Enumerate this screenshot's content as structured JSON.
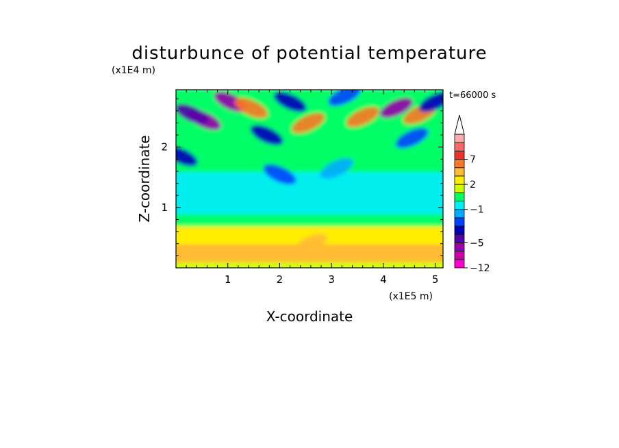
{
  "chart_data": {
    "type": "heatmap",
    "title": "disturbunce of potential temperature",
    "time_label": "t=66000 s",
    "xlabel": "X-coordinate",
    "ylabel": "Z-coordinate",
    "x_unit": "(x1E5 m)",
    "y_unit": "(x1E4 m)",
    "xlim": [
      0,
      5.15
    ],
    "ylim": [
      0,
      2.95
    ],
    "x_ticks": [
      1,
      2,
      3,
      4,
      5
    ],
    "y_ticks": [
      1,
      2
    ],
    "x_tick_labels": [
      "1",
      "2",
      "3",
      "4",
      "5"
    ],
    "y_tick_labels": [
      "1",
      "2"
    ],
    "grid": false,
    "colorbar": {
      "placement": "right",
      "levels": [
        -12,
        -9,
        -7,
        -5,
        -4,
        -3,
        -2,
        -1,
        0,
        1,
        2,
        3,
        5,
        7,
        9,
        11,
        14
      ],
      "colors": [
        "#ff00cc",
        "#cc00aa",
        "#9900aa",
        "#5500aa",
        "#0000bb",
        "#0044ff",
        "#00aaff",
        "#00eeee",
        "#00ff66",
        "#ccff00",
        "#ffee00",
        "#ffbb33",
        "#ff7722",
        "#ee3322",
        "#ff6666",
        "#ffaaaa"
      ],
      "tick_values": [
        -12,
        -5,
        -1,
        2,
        7
      ],
      "tick_labels": [
        "−12",
        "−5",
        "−1",
        "2",
        "7"
      ],
      "extend": "max"
    },
    "rows": [
      {
        "z_range": [
          0,
          0.1
        ],
        "value": 1.5
      },
      {
        "z_range": [
          0.1,
          0.4
        ],
        "value": 3.0
      },
      {
        "z_range": [
          0.4,
          0.7
        ],
        "value": 2.5
      },
      {
        "z_range": [
          0.7,
          0.9
        ],
        "value": 0.8
      },
      {
        "z_range": [
          0.9,
          1.3
        ],
        "value": -0.3
      },
      {
        "z_range": [
          1.3,
          1.6
        ],
        "value": -0.8
      },
      {
        "z_range": [
          1.6,
          1.95
        ],
        "value": 0.5
      },
      {
        "z_range": [
          1.95,
          2.95
        ],
        "value": 0.0
      }
    ],
    "features": [
      {
        "x": 0.55,
        "z": 2.45,
        "value": -7
      },
      {
        "x": 0.3,
        "z": 2.55,
        "value": -5
      },
      {
        "x": 1.05,
        "z": 2.75,
        "value": -6
      },
      {
        "x": 1.45,
        "z": 2.65,
        "value": 6
      },
      {
        "x": 1.75,
        "z": 2.2,
        "value": -4
      },
      {
        "x": 0.1,
        "z": 1.85,
        "value": -4
      },
      {
        "x": 2.2,
        "z": 2.75,
        "value": -4
      },
      {
        "x": 2.55,
        "z": 2.4,
        "value": 5
      },
      {
        "x": 3.25,
        "z": 2.85,
        "value": -3
      },
      {
        "x": 3.6,
        "z": 2.5,
        "value": 6
      },
      {
        "x": 4.25,
        "z": 2.65,
        "value": -7
      },
      {
        "x": 4.7,
        "z": 2.55,
        "value": 5
      },
      {
        "x": 4.55,
        "z": 2.15,
        "value": -3
      },
      {
        "x": 5.0,
        "z": 2.75,
        "value": -4
      },
      {
        "x": 2.0,
        "z": 1.55,
        "value": -3
      },
      {
        "x": 3.1,
        "z": 1.65,
        "value": -2
      },
      {
        "x": 2.6,
        "z": 0.4,
        "value": 4
      }
    ]
  }
}
